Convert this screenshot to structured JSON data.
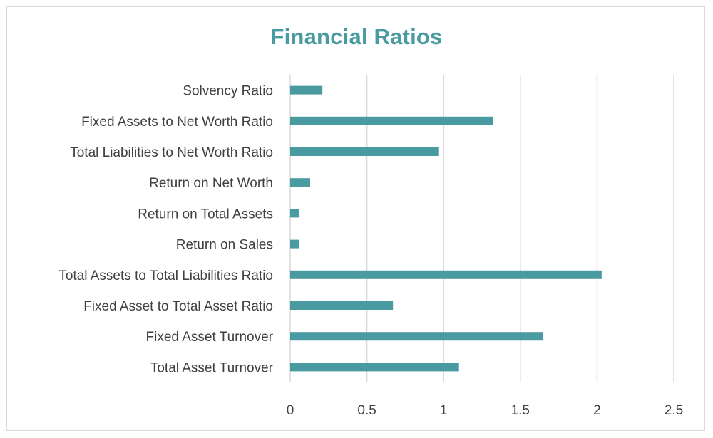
{
  "chart_data": {
    "type": "bar",
    "orientation": "horizontal",
    "title": "Financial Ratios",
    "xlabel": "",
    "ylabel": "",
    "categories": [
      "Solvency Ratio",
      "Fixed Assets to Net Worth Ratio",
      "Total Liabilities to Net Worth Ratio",
      "Return on Net Worth",
      "Return on Total Assets",
      "Return on Sales",
      "Total Assets to Total Liabilities Ratio",
      "Fixed Asset to Total Asset Ratio",
      "Fixed Asset Turnover",
      "Total Asset Turnover"
    ],
    "values": [
      0.21,
      1.32,
      0.97,
      0.13,
      0.06,
      0.06,
      2.03,
      0.67,
      1.65,
      1.1
    ],
    "xlim": [
      0,
      2.5
    ],
    "xticks": [
      "0",
      "0.5",
      "1",
      "1.5",
      "2",
      "2.5"
    ],
    "grid": true,
    "legend": "none",
    "colors": {
      "bar": "#4a9aa2",
      "title": "#4a9aa2",
      "grid": "#d9d9d9",
      "text": "#404040"
    }
  }
}
